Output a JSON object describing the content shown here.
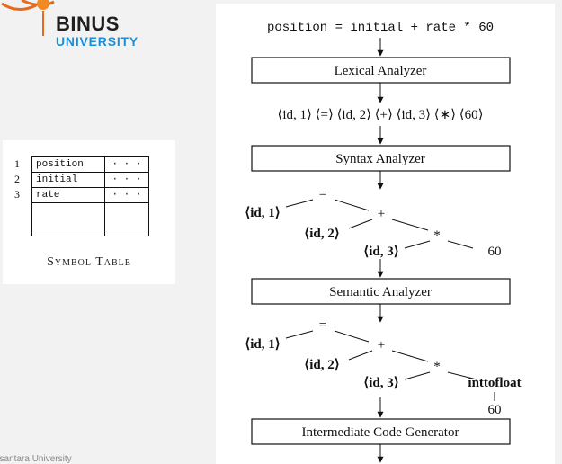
{
  "logo": {
    "name": "BINUS",
    "subtitle": "UNIVERSITY"
  },
  "symbol_table": {
    "caption": "Symbol Table",
    "rows": [
      {
        "num": "1",
        "name": "position",
        "attr": "· · ·"
      },
      {
        "num": "2",
        "name": "initial",
        "attr": "· · ·"
      },
      {
        "num": "3",
        "name": "rate",
        "attr": "· · ·"
      }
    ]
  },
  "footer": {
    "text": "usantara University"
  },
  "diagram": {
    "statement": "position = initial + rate * 60",
    "phases": {
      "lexical": "Lexical Analyzer",
      "syntax": "Syntax Analyzer",
      "semantic": "Semantic Analyzer",
      "intermediate": "Intermediate Code Generator"
    },
    "token_stream": "⟨id, 1⟩ ⟨=⟩ ⟨id, 2⟩ ⟨+⟩ ⟨id, 3⟩ ⟨∗⟩ ⟨60⟩",
    "syntax_tree": {
      "assign_op": "=",
      "id1": "⟨id, 1⟩",
      "plus_op": "+",
      "id2": "⟨id, 2⟩",
      "mult_op": "*",
      "id3": "⟨id, 3⟩",
      "const": "60"
    },
    "semantic_tree": {
      "assign_op": "=",
      "id1": "⟨id, 1⟩",
      "plus_op": "+",
      "id2": "⟨id, 2⟩",
      "mult_op": "*",
      "id3": "⟨id, 3⟩",
      "conversion": "inttofloat",
      "const": "60"
    }
  }
}
